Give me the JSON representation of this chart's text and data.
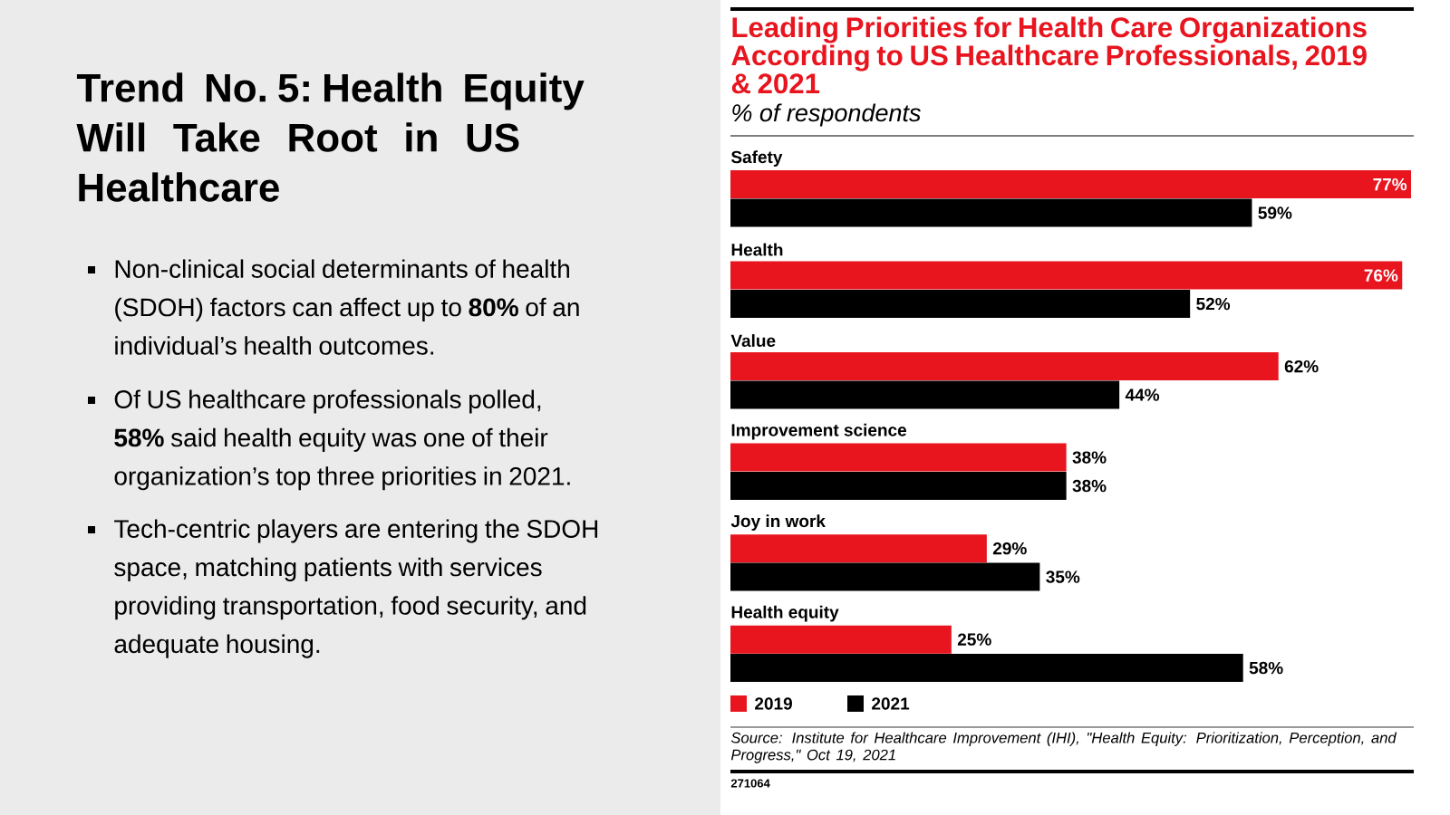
{
  "chart_data": {
    "type": "bar",
    "orientation": "horizontal",
    "title": "Leading Priorities for Health Care Organizations According to US Healthcare Professionals, 2019 & 2021",
    "subtitle": "% of respondents",
    "categories": [
      "Safety",
      "Health",
      "Value",
      "Improvement science",
      "Joy in work",
      "Health equity"
    ],
    "series": [
      {
        "name": "2019",
        "color": "#e8151f",
        "values": [
          77,
          76,
          62,
          38,
          29,
          25
        ],
        "value_labels": [
          "77%",
          "76%",
          "62%",
          "38%",
          "29%",
          "25%"
        ]
      },
      {
        "name": "2021",
        "color": "#000000",
        "values": [
          59,
          52,
          44,
          38,
          35,
          58
        ],
        "value_labels": [
          "59%",
          "52%",
          "44%",
          "38%",
          "35%",
          "58%"
        ]
      }
    ],
    "legend": "bottom left",
    "annotations": [
      "Trend No. 5: Health Equity Will Take Root in US Healthcare",
      "Non-clinical social determinants of health (SDOH) factors can affect up to **80%** of an individual’s health outcomes.",
      "Of US healthcare professionals polled, **58%** said health equity was one of their organization’s top three priorities in 2021.",
      "Tech-centric players are entering the SDOH space, matching patients with services providing transportation, food security, and adequate housing.",
      "Source: Institute for Healthcare Improvement (IHI), \"Health Equity: Prioritization, Perception, and Progress,\" Oct 19, 2021",
      "271064"
    ]
  }
}
